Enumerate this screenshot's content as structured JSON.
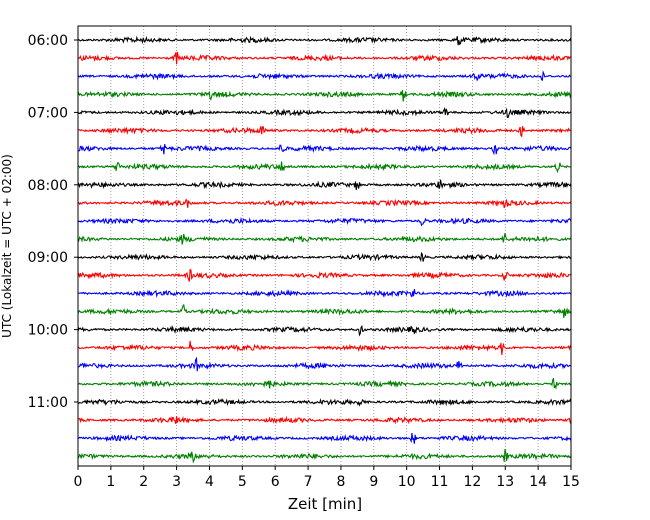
{
  "chart_data": {
    "type": "line",
    "title": "",
    "xlabel": "Zeit  [min]",
    "ylabel": "UTC (Lokalzeit = UTC + 02:00)",
    "xlim": [
      0,
      15
    ],
    "x_ticks": [
      "0",
      "1",
      "2",
      "3",
      "4",
      "5",
      "6",
      "7",
      "8",
      "9",
      "10",
      "11",
      "12",
      "13",
      "14",
      "15"
    ],
    "y_tick_labels": [
      "06:00",
      "07:00",
      "08:00",
      "09:00",
      "10:00",
      "11:00"
    ],
    "grid": "vertical dotted lines at each minute",
    "trace_colors": [
      "#000000",
      "#ff0000",
      "#0000ff",
      "#008000"
    ],
    "traces": [
      {
        "start": "06:00",
        "color": "#000000",
        "spikes": [
          11.6
        ]
      },
      {
        "start": "06:15",
        "color": "#ff0000",
        "spikes": [
          3.0
        ]
      },
      {
        "start": "06:30",
        "color": "#0000ff",
        "spikes": [
          14.1,
          12.1
        ]
      },
      {
        "start": "06:45",
        "color": "#008000",
        "spikes": [
          4.0,
          9.9
        ]
      },
      {
        "start": "07:00",
        "color": "#000000",
        "spikes": [
          11.2,
          13.1
        ]
      },
      {
        "start": "07:15",
        "color": "#ff0000",
        "spikes": [
          5.6,
          13.5
        ]
      },
      {
        "start": "07:30",
        "color": "#0000ff",
        "spikes": [
          2.6,
          6.2,
          12.7
        ]
      },
      {
        "start": "07:45",
        "color": "#008000",
        "spikes": [
          1.2,
          6.2,
          14.6
        ]
      },
      {
        "start": "08:00",
        "color": "#000000",
        "spikes": [
          11.0,
          8.5
        ]
      },
      {
        "start": "08:15",
        "color": "#ff0000",
        "spikes": [
          3.3,
          13.0
        ]
      },
      {
        "start": "08:30",
        "color": "#0000ff",
        "spikes": [
          10.5
        ]
      },
      {
        "start": "08:45",
        "color": "#008000",
        "spikes": [
          3.2,
          13.0
        ]
      },
      {
        "start": "09:00",
        "color": "#000000",
        "spikes": [
          10.5
        ]
      },
      {
        "start": "09:15",
        "color": "#ff0000",
        "spikes": [
          3.4,
          13.0
        ]
      },
      {
        "start": "09:30",
        "color": "#0000ff",
        "spikes": [
          10.2
        ]
      },
      {
        "start": "09:45",
        "color": "#008000",
        "spikes": [
          3.2,
          14.8
        ]
      },
      {
        "start": "10:00",
        "color": "#000000",
        "spikes": [
          8.6,
          10.2
        ]
      },
      {
        "start": "10:15",
        "color": "#ff0000",
        "spikes": [
          3.4,
          12.9
        ]
      },
      {
        "start": "10:30",
        "color": "#0000ff",
        "spikes": [
          3.6,
          11.6
        ]
      },
      {
        "start": "10:45",
        "color": "#008000",
        "spikes": [
          5.8,
          14.5
        ]
      },
      {
        "start": "11:00",
        "color": "#000000",
        "spikes": [
          8.6
        ]
      },
      {
        "start": "11:15",
        "color": "#ff0000",
        "spikes": [
          3.0,
          15.0
        ]
      },
      {
        "start": "11:30",
        "color": "#0000ff",
        "spikes": [
          10.2
        ]
      },
      {
        "start": "11:45",
        "color": "#008000",
        "spikes": [
          3.5,
          13.0
        ]
      }
    ]
  }
}
